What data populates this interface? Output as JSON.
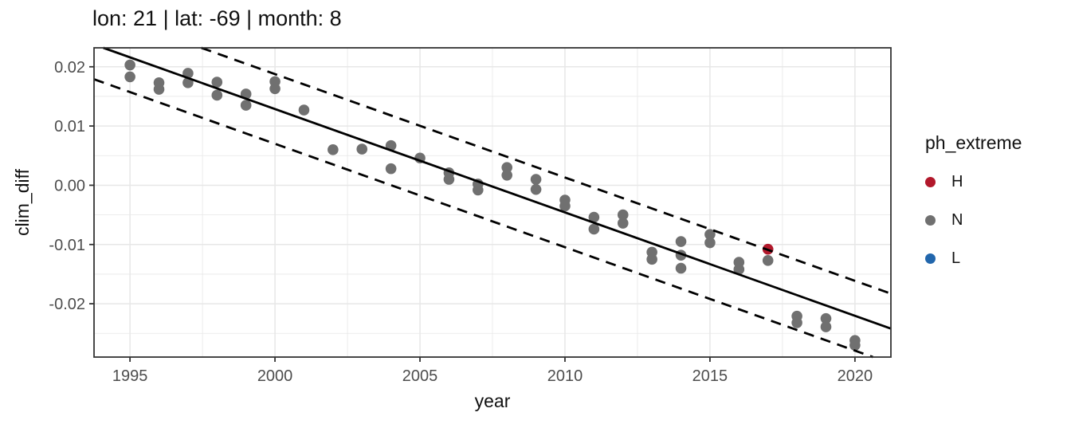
{
  "title": "lon: 21 | lat: -69 | month: 8",
  "chart_data": {
    "type": "scatter",
    "title": "lon: 21 | lat: -69 | month: 8",
    "xlabel": "year",
    "ylabel": "clim_diff",
    "xlim": [
      1993.76,
      2021.24
    ],
    "ylim": [
      -0.029,
      0.0232
    ],
    "grid": true,
    "background": "#ffffff",
    "panel_border_color": "#333333",
    "grid_color": "#e7e7e7",
    "tick_label_color": "#4d4d4d",
    "x_ticks": {
      "values": [
        1995,
        2000,
        2005,
        2010,
        2015,
        2020
      ],
      "labels": [
        "1995",
        "2000",
        "2005",
        "2010",
        "2015",
        "2020"
      ],
      "minor": [
        1997.5,
        2002.5,
        2007.5,
        2012.5,
        2017.5
      ]
    },
    "y_ticks": {
      "values": [
        0.02,
        0.01,
        0,
        -0.01,
        -0.02
      ],
      "labels": [
        "0.02",
        "0.01",
        "0.00",
        "-0.01",
        "-0.02"
      ],
      "minor": [
        0.015,
        0.005,
        -0.005,
        -0.015,
        -0.025
      ]
    },
    "trend_line": {
      "style": "solid",
      "color": "#000000",
      "points": [
        [
          1994.08,
          0.0232
        ],
        [
          2021.24,
          -0.0242
        ]
      ]
    },
    "upper_band": {
      "style": "dashed",
      "color": "#000000",
      "points": [
        [
          1997.46,
          0.0232
        ],
        [
          2021.24,
          -0.0183
        ]
      ]
    },
    "lower_band": {
      "style": "dashed",
      "color": "#000000",
      "points": [
        [
          1993.76,
          0.0179
        ],
        [
          2020.62,
          -0.029
        ]
      ]
    },
    "series": [
      {
        "name": "N",
        "color": "#707070",
        "points": [
          [
            1995,
            0.0203
          ],
          [
            1995,
            0.0183
          ],
          [
            1996,
            0.0173
          ],
          [
            1996,
            0.0162
          ],
          [
            1997,
            0.0189
          ],
          [
            1997,
            0.0173
          ],
          [
            1998,
            0.0174
          ],
          [
            1998,
            0.0152
          ],
          [
            1999,
            0.0154
          ],
          [
            1999,
            0.0135
          ],
          [
            2000,
            0.0175
          ],
          [
            2000,
            0.0163
          ],
          [
            2001,
            0.0127
          ],
          [
            2002,
            0.006
          ],
          [
            2003,
            0.0061
          ],
          [
            2004,
            0.0067
          ],
          [
            2004,
            0.0028
          ],
          [
            2005,
            0.0046
          ],
          [
            2006,
            0.0021
          ],
          [
            2006,
            0.001
          ],
          [
            2007,
            0.0002
          ],
          [
            2007,
            -0.0008
          ],
          [
            2008,
            0.003
          ],
          [
            2008,
            0.0017
          ],
          [
            2009,
            0.001
          ],
          [
            2009,
            -0.0007
          ],
          [
            2010,
            -0.0025
          ],
          [
            2010,
            -0.0035
          ],
          [
            2011,
            -0.0054
          ],
          [
            2011,
            -0.0074
          ],
          [
            2012,
            -0.005
          ],
          [
            2012,
            -0.0064
          ],
          [
            2013,
            -0.0113
          ],
          [
            2013,
            -0.0125
          ],
          [
            2014,
            -0.0095
          ],
          [
            2014,
            -0.0118
          ],
          [
            2014,
            -0.014
          ],
          [
            2015,
            -0.0083
          ],
          [
            2015,
            -0.0097
          ],
          [
            2016,
            -0.013
          ],
          [
            2016,
            -0.0142
          ],
          [
            2017,
            -0.0127
          ],
          [
            2018,
            -0.0221
          ],
          [
            2018,
            -0.0232
          ],
          [
            2019,
            -0.0225
          ],
          [
            2019,
            -0.0239
          ],
          [
            2020,
            -0.0262
          ],
          [
            2020,
            -0.027
          ]
        ]
      },
      {
        "name": "H",
        "color": "#b2182b",
        "points": [
          [
            2017,
            -0.0108
          ]
        ]
      },
      {
        "name": "L",
        "color": "#2166ac",
        "points": []
      }
    ],
    "legend": {
      "title": "ph_extreme",
      "position": "right",
      "items": [
        {
          "label": "H",
          "color": "#b2182b"
        },
        {
          "label": "N",
          "color": "#707070"
        },
        {
          "label": "L",
          "color": "#2166ac"
        }
      ]
    }
  }
}
